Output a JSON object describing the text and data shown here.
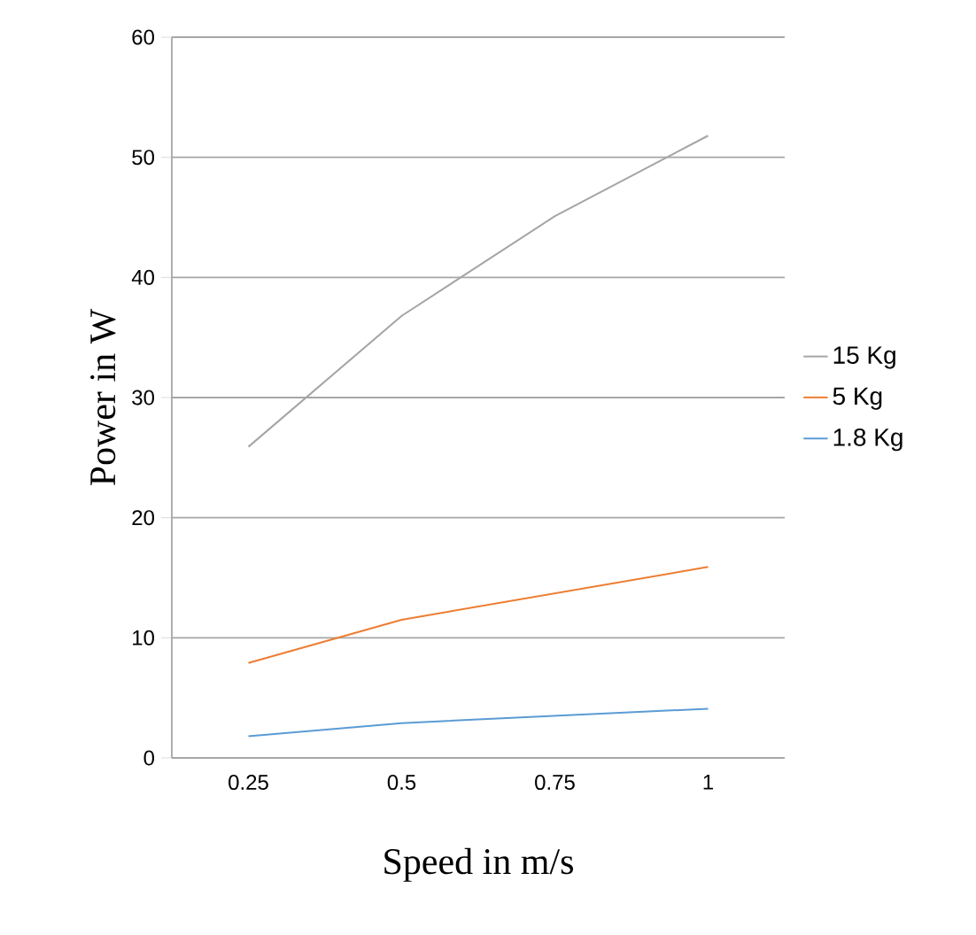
{
  "chart_data": {
    "type": "line",
    "xlabel": "Speed in m/s",
    "ylabel": "Power in W",
    "categories": [
      "0.25",
      "0.5",
      "0.75",
      "1"
    ],
    "series": [
      {
        "name": "15 Kg",
        "color": "#a5a5a5",
        "values": [
          25.9,
          36.8,
          45.1,
          51.8
        ]
      },
      {
        "name": "5 Kg",
        "color": "#ed7d31",
        "values": [
          7.9,
          11.5,
          13.7,
          15.9
        ]
      },
      {
        "name": "1.8 Kg",
        "color": "#5b9bd5",
        "values": [
          1.8,
          2.9,
          3.5,
          4.1
        ]
      }
    ],
    "ylim": [
      0,
      60
    ],
    "yticks": [
      0,
      10,
      20,
      30,
      40,
      50,
      60
    ],
    "grid": "y",
    "legend": "right",
    "marker": "none",
    "line_style": "solid"
  }
}
